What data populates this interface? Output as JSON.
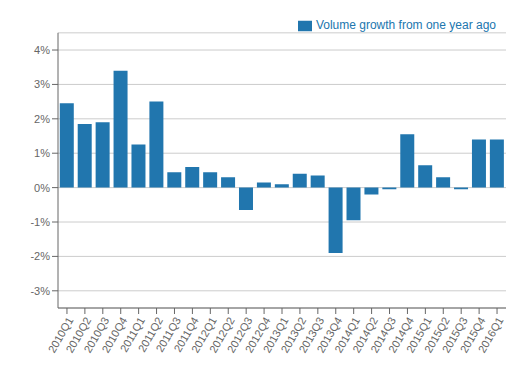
{
  "chart_data": {
    "type": "bar",
    "categories": [
      "2010Q1",
      "2010Q2",
      "2010Q3",
      "2010Q4",
      "2011Q1",
      "2011Q2",
      "2011Q3",
      "2011Q4",
      "2012Q1",
      "2012Q2",
      "2012Q3",
      "2012Q4",
      "2013Q1",
      "2013Q2",
      "2013Q3",
      "2013Q4",
      "2014Q1",
      "2014Q2",
      "2014Q3",
      "2014Q4",
      "2015Q1",
      "2015Q2",
      "2015Q3",
      "2015Q4",
      "2016Q1"
    ],
    "series": [
      {
        "name": "Volume growth from one year ago",
        "color": "#2176ae",
        "values": [
          2.45,
          1.85,
          1.9,
          3.4,
          1.25,
          2.5,
          0.45,
          0.6,
          0.45,
          0.3,
          -0.65,
          0.15,
          0.1,
          0.4,
          0.35,
          -1.9,
          -0.95,
          -0.2,
          -0.05,
          1.55,
          0.65,
          0.3,
          -0.05,
          1.4,
          1.4
        ]
      }
    ],
    "ylim": [
      -3.5,
      4.5
    ],
    "yticks": [
      {
        "value": -3,
        "label": "-3%"
      },
      {
        "value": -2,
        "label": "-2%"
      },
      {
        "value": -1,
        "label": "-1%"
      },
      {
        "value": 0,
        "label": "0%"
      },
      {
        "value": 1,
        "label": "1%"
      },
      {
        "value": 2,
        "label": "2%"
      },
      {
        "value": 3,
        "label": "3%"
      },
      {
        "value": 4,
        "label": "4%"
      }
    ],
    "grid": true,
    "legend": "upper right"
  }
}
